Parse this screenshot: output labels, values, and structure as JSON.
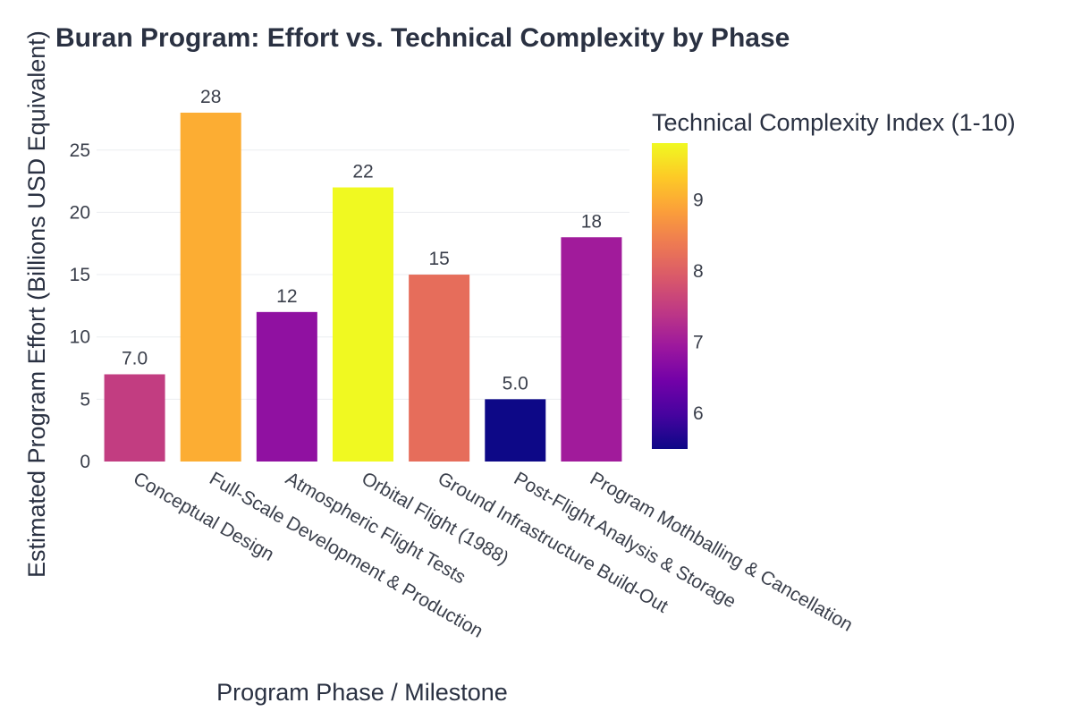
{
  "chart_data": {
    "type": "bar",
    "title": "Buran Program: Effort vs. Technical Complexity by Phase",
    "xlabel": "Program Phase / Milestone",
    "ylabel": "Estimated Program Effort (Billions USD Equivalent)",
    "categories": [
      "Conceptual Design",
      "Full-Scale Development & Production",
      "Atmospheric Flight Tests",
      "Orbital Flight (1988)",
      "Ground Infrastructure Build-Out",
      "Post-Flight Analysis & Storage",
      "Program Mothballing & Cancellation"
    ],
    "values": [
      7,
      28,
      12,
      22,
      15,
      5,
      18
    ],
    "value_labels": [
      "7.0",
      "28",
      "12",
      "22",
      "15",
      "5.0",
      "18"
    ],
    "complexity": [
      7.5,
      9.0,
      6.8,
      9.8,
      8.2,
      5.5,
      7.0
    ],
    "ylim": [
      0,
      28
    ],
    "yticks": [
      0,
      5,
      10,
      15,
      20,
      25
    ],
    "grid": true,
    "colorbar": {
      "title": "Technical Complexity Index (1-10)",
      "range": [
        5.5,
        9.8
      ],
      "ticks": [
        6,
        7,
        8,
        9
      ],
      "colorscale": "plasma"
    }
  }
}
